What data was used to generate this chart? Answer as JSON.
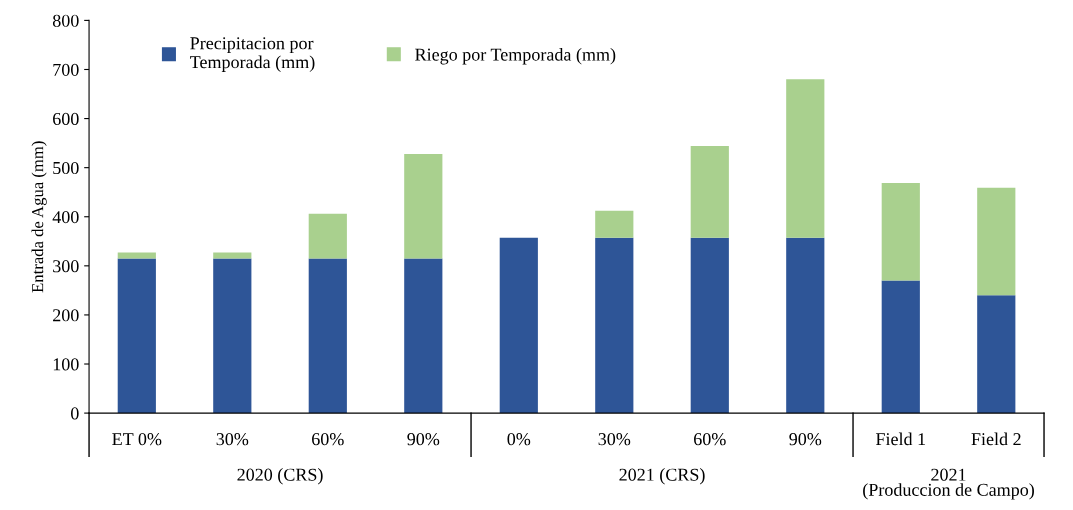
{
  "chart_data": {
    "type": "bar",
    "stacked": true,
    "ylabel": "Entrada de Agua (mm)",
    "categories": [
      "ET 0%",
      "30%",
      "60%",
      "90%",
      "0%",
      "30%",
      "60%",
      "90%",
      "Field 1",
      "Field 2"
    ],
    "series": [
      {
        "name": "Precipitacion por\nTemporada (mm)",
        "color": "#2e5597",
        "values": [
          315,
          315,
          315,
          315,
          357,
          357,
          357,
          357,
          270,
          240
        ]
      },
      {
        "name": "Riego por Temporada (mm)",
        "color": "#a9d08e",
        "values": [
          12,
          12,
          91,
          213,
          0,
          55,
          187,
          323,
          199,
          219
        ]
      }
    ],
    "ylim": [
      0,
      800
    ],
    "yticks": [
      0,
      100,
      200,
      300,
      400,
      500,
      600,
      700,
      800
    ],
    "grid": false,
    "legend": "top left",
    "annotations": [
      "2020 (CRS)",
      "2021 (CRS)",
      "2021\n(Produccion de Campo)"
    ]
  }
}
